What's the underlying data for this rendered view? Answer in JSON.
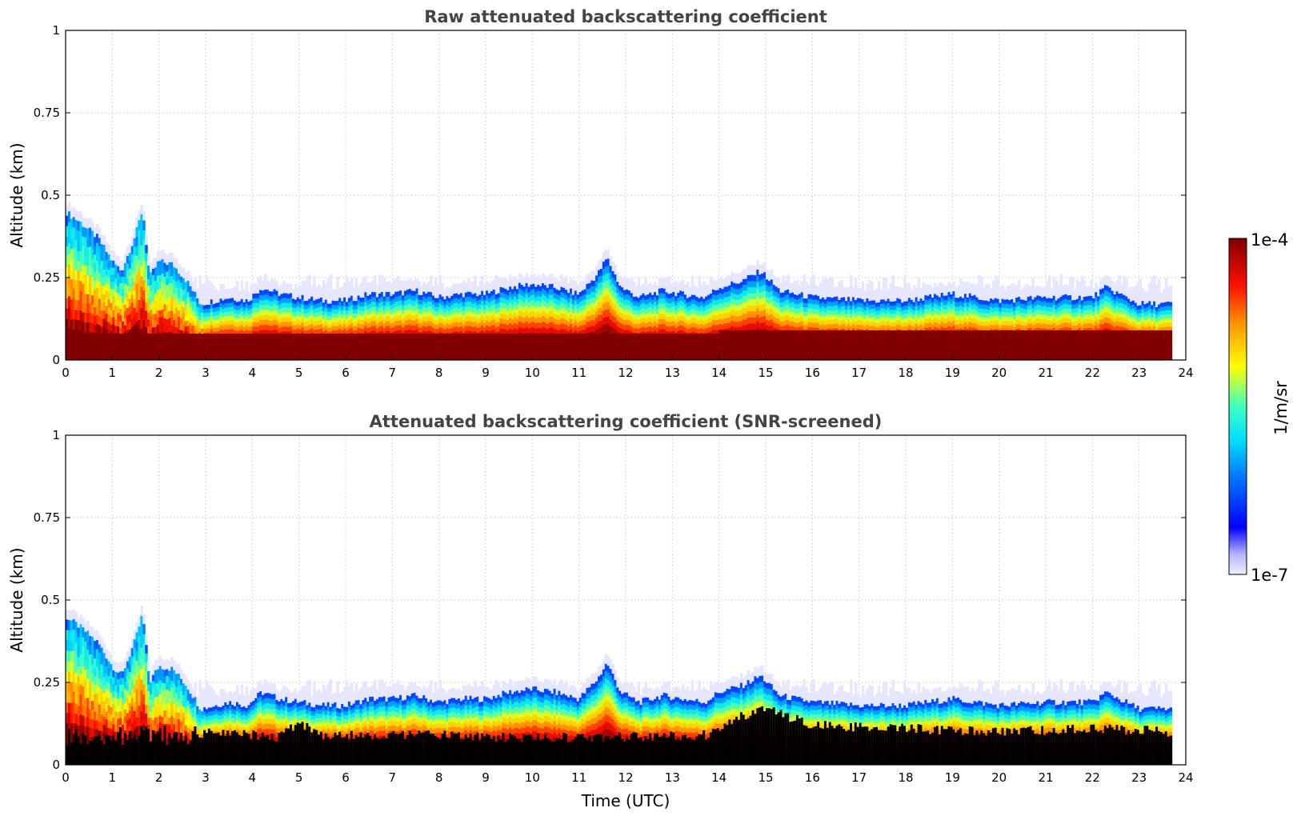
{
  "chart_data": [
    {
      "type": "heatmap",
      "title": "Raw attenuated backscattering coefficient",
      "xlabel": "",
      "ylabel": "Altitude (km)",
      "xlim": [
        0,
        24
      ],
      "ylim": [
        0,
        1
      ],
      "x_ticks": [
        "0",
        "1",
        "2",
        "3",
        "4",
        "5",
        "6",
        "7",
        "8",
        "9",
        "10",
        "11",
        "12",
        "13",
        "14",
        "15",
        "16",
        "17",
        "18",
        "19",
        "20",
        "21",
        "22",
        "23",
        "24"
      ],
      "y_ticks": [
        "0",
        "0.25",
        "0.5",
        "0.75",
        "1"
      ],
      "y_tick_values": [
        0,
        0.25,
        0.5,
        0.75,
        1
      ],
      "grid": true,
      "data_end_time": 23.7,
      "screened": false,
      "layer_top_km": [
        [
          0,
          0.45
        ],
        [
          0.3,
          0.42
        ],
        [
          0.7,
          0.37
        ],
        [
          1.0,
          0.3
        ],
        [
          1.2,
          0.27
        ],
        [
          1.5,
          0.38
        ],
        [
          1.65,
          0.46
        ],
        [
          1.8,
          0.25
        ],
        [
          2.0,
          0.3
        ],
        [
          2.3,
          0.29
        ],
        [
          2.6,
          0.24
        ],
        [
          2.9,
          0.17
        ],
        [
          3.2,
          0.18
        ],
        [
          3.5,
          0.19
        ],
        [
          3.9,
          0.18
        ],
        [
          4.2,
          0.22
        ],
        [
          4.6,
          0.2
        ],
        [
          5.0,
          0.19
        ],
        [
          5.5,
          0.18
        ],
        [
          6.0,
          0.18
        ],
        [
          6.5,
          0.2
        ],
        [
          7.0,
          0.2
        ],
        [
          7.5,
          0.21
        ],
        [
          8.0,
          0.19
        ],
        [
          8.5,
          0.2
        ],
        [
          9.0,
          0.2
        ],
        [
          9.5,
          0.22
        ],
        [
          10.0,
          0.23
        ],
        [
          10.5,
          0.22
        ],
        [
          11.0,
          0.2
        ],
        [
          11.4,
          0.26
        ],
        [
          11.6,
          0.31
        ],
        [
          11.9,
          0.22
        ],
        [
          12.3,
          0.19
        ],
        [
          12.8,
          0.21
        ],
        [
          13.2,
          0.2
        ],
        [
          13.7,
          0.19
        ],
        [
          14.0,
          0.22
        ],
        [
          14.5,
          0.24
        ],
        [
          14.9,
          0.27
        ],
        [
          15.3,
          0.21
        ],
        [
          16.0,
          0.19
        ],
        [
          17.0,
          0.18
        ],
        [
          18.0,
          0.18
        ],
        [
          19.0,
          0.2
        ],
        [
          20.0,
          0.18
        ],
        [
          21.0,
          0.19
        ],
        [
          22.0,
          0.19
        ],
        [
          22.3,
          0.22
        ],
        [
          23.0,
          0.17
        ],
        [
          23.7,
          0.17
        ]
      ],
      "faint_layer_top_km": 0.25,
      "strong_layer_top_km": 0.09
    },
    {
      "type": "heatmap",
      "title": "Attenuated backscattering coefficient (SNR-screened)",
      "xlabel": "Time (UTC)",
      "ylabel": "Altitude (km)",
      "xlim": [
        0,
        24
      ],
      "ylim": [
        0,
        1
      ],
      "x_ticks": [
        "0",
        "1",
        "2",
        "3",
        "4",
        "5",
        "6",
        "7",
        "8",
        "9",
        "10",
        "11",
        "12",
        "13",
        "14",
        "15",
        "16",
        "17",
        "18",
        "19",
        "20",
        "21",
        "22",
        "23",
        "24"
      ],
      "y_ticks": [
        "0",
        "0.25",
        "0.5",
        "0.75",
        "1"
      ],
      "y_tick_values": [
        0,
        0.25,
        0.5,
        0.75,
        1
      ],
      "grid": true,
      "data_end_time": 23.7,
      "screened": true,
      "masked_region_top_km": [
        [
          0,
          0.1
        ],
        [
          3.0,
          0.11
        ],
        [
          4.5,
          0.08
        ],
        [
          5.0,
          0.13
        ],
        [
          5.5,
          0.09
        ],
        [
          8.0,
          0.09
        ],
        [
          10.0,
          0.08
        ],
        [
          13.8,
          0.09
        ],
        [
          14.3,
          0.14
        ],
        [
          15.0,
          0.17
        ],
        [
          16.0,
          0.12
        ],
        [
          18.0,
          0.11
        ],
        [
          20.0,
          0.1
        ],
        [
          22.0,
          0.11
        ],
        [
          23.7,
          0.1
        ]
      ]
    }
  ],
  "colorbar": {
    "label": "1/m/sr",
    "max_label": "1e-4",
    "min_label": "1e-7",
    "scale": "log",
    "range": [
      1e-07,
      0.0001
    ],
    "colors": [
      "#f0f0ff",
      "#9696ff",
      "#0000ff",
      "#00a0ff",
      "#00ffff",
      "#80ff80",
      "#ffff00",
      "#ff8000",
      "#ff0000",
      "#800000"
    ]
  },
  "mask_color": "#000000"
}
